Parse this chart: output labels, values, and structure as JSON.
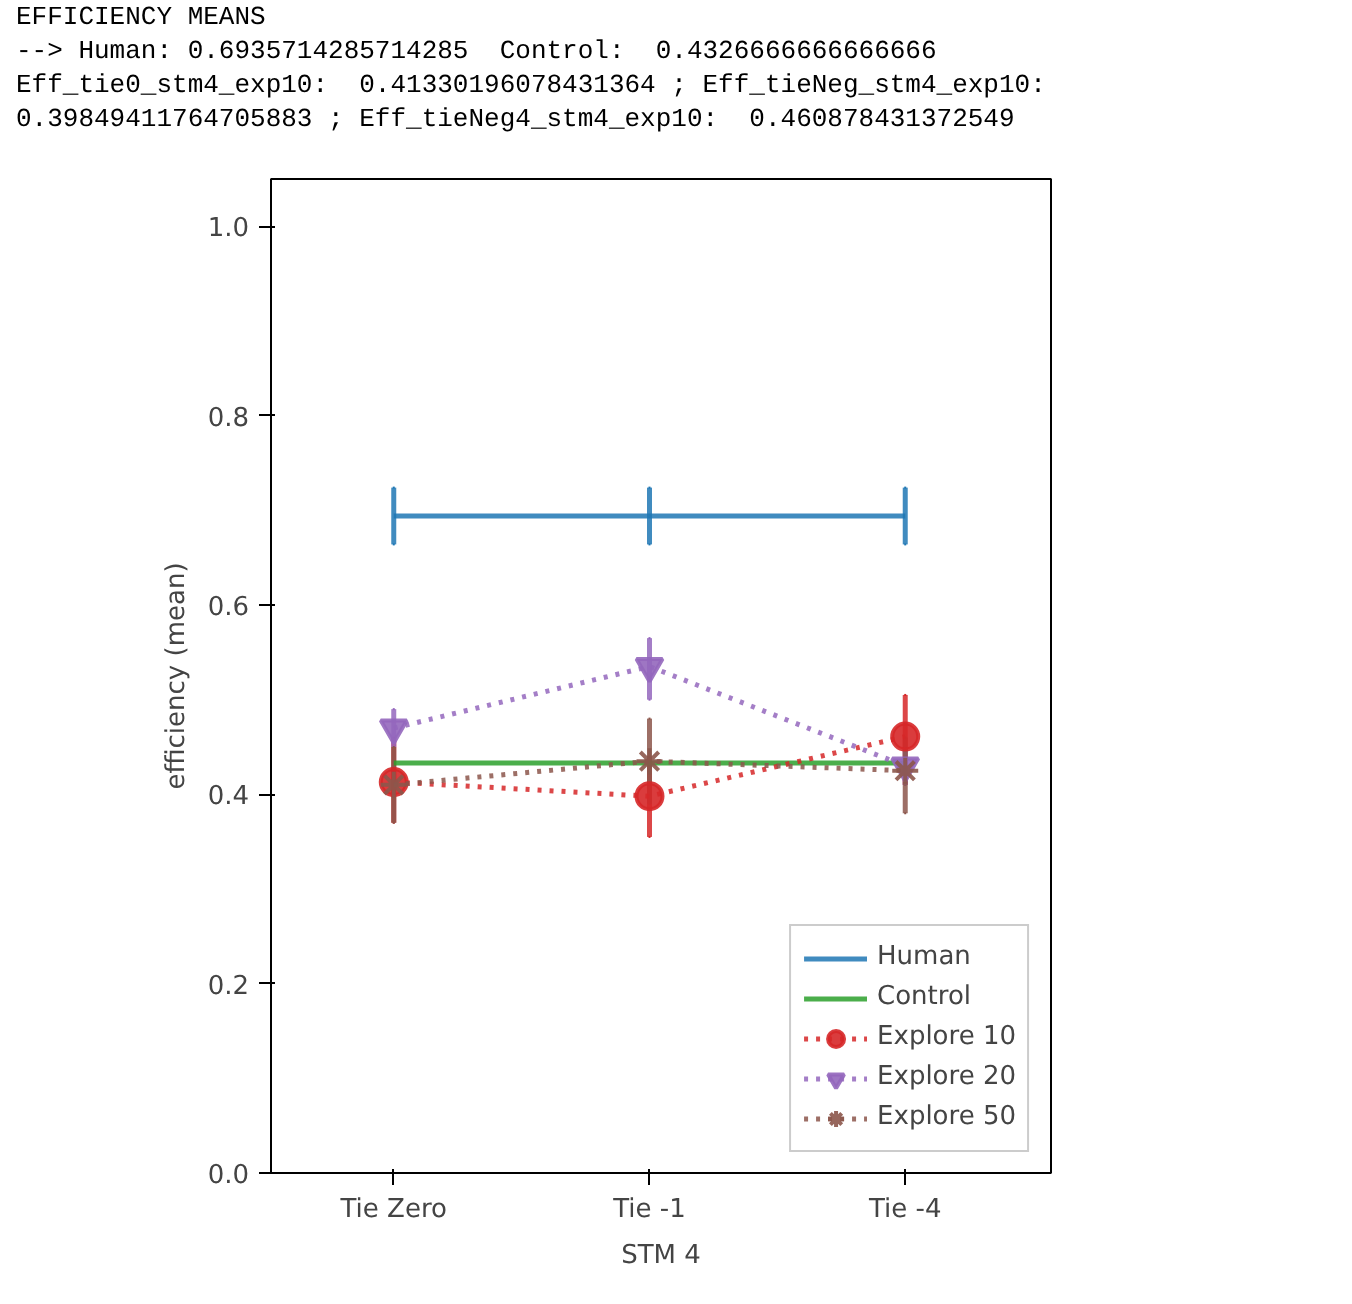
{
  "chart_data": {
    "type": "line",
    "xlabel": "STM 4",
    "ylabel": "efficiency (mean)",
    "annotations": [
      "EFFICIENCY MEANS",
      "--> Human: 0.6935714285714285  Control:  0.4326666666666666",
      "Eff_tie0_stm4_exp10:  0.41330196078431364 ; Eff_tieNeg_stm4_exp10:",
      "0.39849411764705883 ; Eff_tieNeg4_stm4_exp10:  0.460878431372549"
    ],
    "categories": [
      "Tie Zero",
      "Tie -1",
      "Tie -4"
    ],
    "ylim": [
      0,
      1.05
    ],
    "yticks": [
      {
        "value": 0,
        "label": "0.0"
      },
      {
        "value": 0.2,
        "label": "0.2"
      },
      {
        "value": 0.4,
        "label": "0.4"
      },
      {
        "value": 0.6,
        "label": "0.6"
      },
      {
        "value": 0.8,
        "label": "0.8"
      },
      {
        "value": 1,
        "label": "1.0"
      }
    ],
    "grid": false,
    "legend": "bottom right",
    "series": [
      {
        "name": "Human",
        "color": "#1f77b4",
        "values": [
          0.694,
          0.694,
          0.694
        ],
        "errors": [
          0.03,
          0.03,
          0.03
        ],
        "marker": "none",
        "line_style": "solid"
      },
      {
        "name": "Control",
        "color": "#2ca02c",
        "values": [
          0.433,
          0.433,
          0.433
        ],
        "marker": "none",
        "line_style": "solid"
      },
      {
        "name": "Explore 10",
        "color": "#d62728",
        "values": [
          0.413,
          0.398,
          0.461
        ],
        "errors": [
          [
            0.37,
            0.46
          ],
          [
            0.355,
            0.44
          ],
          [
            0.41,
            0.505
          ]
        ],
        "marker": "circle",
        "line_style": "dotted"
      },
      {
        "name": "Explore 20",
        "color": "#9467bd",
        "values": [
          0.47,
          0.535,
          0.43
        ],
        "errors": [
          [
            0.45,
            0.49
          ],
          [
            0.5,
            0.565
          ],
          [
            0.41,
            0.45
          ]
        ],
        "marker": "triangle_down",
        "line_style": "dotted"
      },
      {
        "name": "Explore 50",
        "color": "#8c564b",
        "values": [
          0.41,
          0.435,
          0.425
        ],
        "errors": [
          [
            0.37,
            0.45
          ],
          [
            0.39,
            0.48
          ],
          [
            0.38,
            0.46
          ]
        ],
        "marker": "cross",
        "line_style": "dotted"
      }
    ]
  }
}
